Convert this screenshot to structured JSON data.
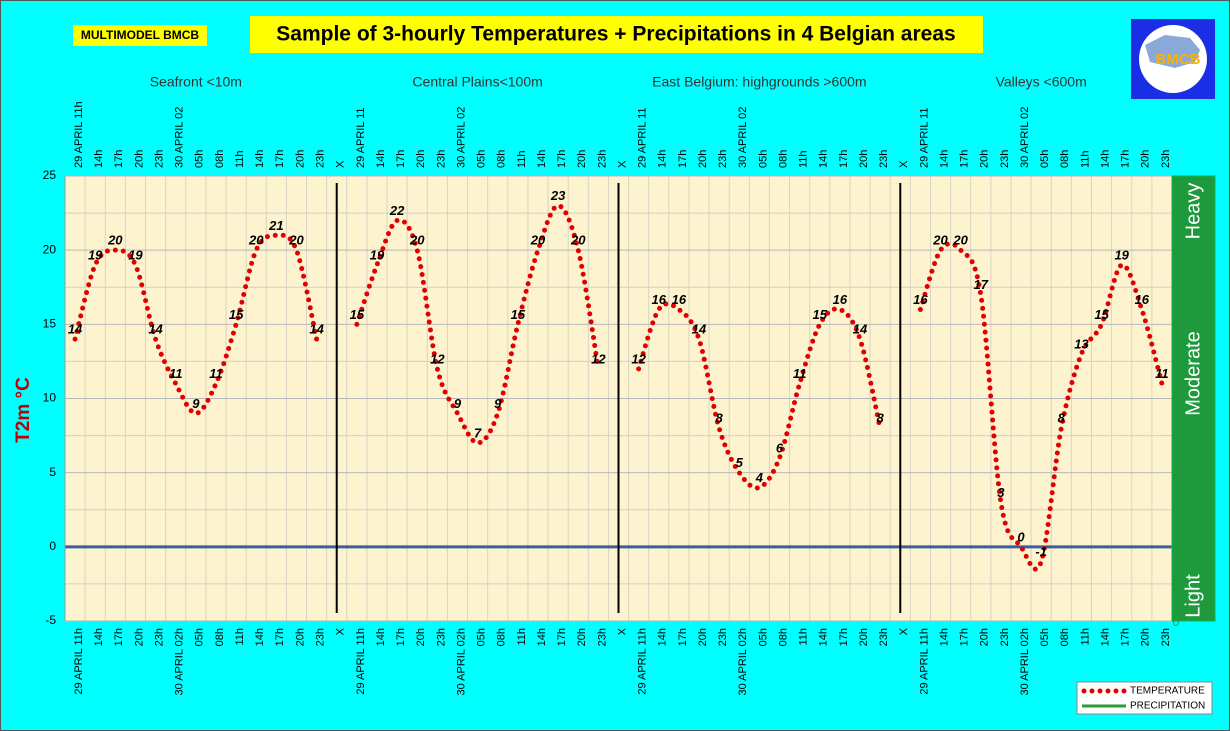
{
  "header_label": "MULTIMODEL BMCB",
  "logo_text": "BMCB",
  "chart_data": {
    "type": "line",
    "title": "Sample of 3-hourly Temperatures + Precipitations in 4 Belgian areas",
    "y_label": "T2m °C",
    "regions": [
      "Seafront <10m",
      "Central Plains<100m",
      "East Belgium:     highgrounds >600m",
      "Valleys <600m"
    ],
    "categories": [
      "29 APRIL 11h",
      "14h",
      "17h",
      "20h",
      "23h",
      "30 APRIL 02h",
      "05h",
      "08h",
      "11h",
      "14h",
      "17h",
      "20h",
      "23h",
      "X",
      "29 APRIL 11h",
      "14h",
      "17h",
      "20h",
      "23h",
      "30 APRIL 02h",
      "05h",
      "08h",
      "11h",
      "14h",
      "17h",
      "20h",
      "23h",
      "X",
      "29 APRIL 11h",
      "14h",
      "17h",
      "20h",
      "23h",
      "30 APRIL 02h",
      "05h",
      "08h",
      "11h",
      "14h",
      "17h",
      "20h",
      "23h",
      "X",
      "29 APRIL 11h",
      "14h",
      "17h",
      "20h",
      "23h",
      "30 APRIL 02h",
      "05h",
      "08h",
      "11h",
      "14h",
      "17h",
      "20h",
      "23h"
    ],
    "top_categories": [
      "29 APRIL 11h",
      "14h",
      "17h",
      "20h",
      "23h",
      "30 APRIL 02",
      "05h",
      "08h",
      "11h",
      "14h",
      "17h",
      "20h",
      "23h",
      "X",
      "29 APRIL 11",
      "14h",
      "17h",
      "20h",
      "23h",
      "30 APRIL 02",
      "05h",
      "08h",
      "11h",
      "14h",
      "17h",
      "20h",
      "23h",
      "X",
      "29 APRIL 11",
      "14h",
      "17h",
      "20h",
      "23h",
      "30 APRIL 02",
      "05h",
      "08h",
      "11h",
      "14h",
      "17h",
      "20h",
      "23h",
      "X",
      "29 APRIL 11",
      "14h",
      "17h",
      "20h",
      "23h",
      "30 APRIL 02",
      "05h",
      "08h",
      "11h",
      "14h",
      "17h",
      "20h",
      "23h"
    ],
    "series": [
      {
        "name": "TEMPERATURE",
        "color": "#e00000",
        "values": [
          14,
          19,
          20,
          19,
          14,
          11,
          9,
          11,
          15,
          20,
          21,
          20,
          14,
          null,
          15,
          19,
          22,
          20,
          12,
          9,
          7,
          9,
          15,
          20,
          23,
          20,
          12,
          null,
          12,
          16,
          16,
          14,
          8,
          5,
          4,
          6,
          11,
          15,
          16,
          14,
          8,
          null,
          16,
          20,
          20,
          17,
          3,
          0,
          -1,
          8,
          13,
          15,
          19,
          16,
          11
        ]
      },
      {
        "name": "PRECIPITATION",
        "color": "#2e9a3a",
        "values": [
          null,
          null,
          null,
          null,
          null,
          null,
          null,
          null,
          null,
          null,
          null,
          null,
          null,
          null,
          null,
          null,
          null,
          null,
          null,
          null,
          null,
          null,
          null,
          null,
          null,
          null,
          null,
          null,
          null,
          null,
          null,
          null,
          null,
          null,
          null,
          null,
          null,
          null,
          null,
          null,
          null,
          null,
          null,
          null,
          null,
          null,
          null,
          null,
          null,
          null,
          null,
          null,
          null,
          null,
          null
        ]
      }
    ],
    "ylim": [
      -5,
      25
    ],
    "yticks": [
      -5,
      0,
      5,
      10,
      15,
      20,
      25
    ],
    "y2ticks": [
      0
    ],
    "precipitation_levels": [
      "Heavy",
      "Moderate",
      "Light"
    ],
    "grid": true
  }
}
